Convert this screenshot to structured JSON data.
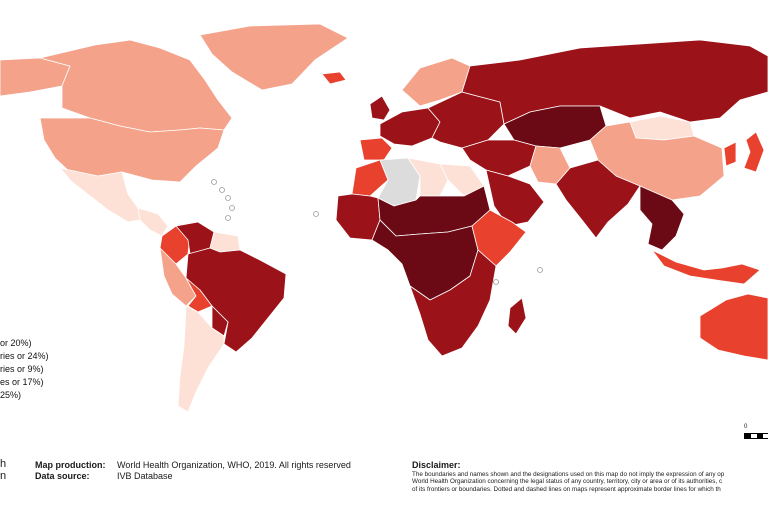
{
  "palette": {
    "darkest": "#6b0a14",
    "dark": "#9c1219",
    "medium": "#e8412e",
    "light": "#f4a28a",
    "lightest": "#fde1d6",
    "no_data": "#dcdcdc",
    "ocean": "#ffffff",
    "border": "#ffffff"
  },
  "legend": {
    "items": [
      {
        "text": "or 20%)",
        "color": "#6b0a14"
      },
      {
        "text": "ries or 24%)",
        "color": "#9c1219"
      },
      {
        "text": "ries or 9%)",
        "color": "#e8412e"
      },
      {
        "text": "es or 17%)",
        "color": "#f4a28a"
      },
      {
        "text": "25%)",
        "color": "#fde1d6"
      }
    ]
  },
  "logo": {
    "line1": "h",
    "line2": "n"
  },
  "production": {
    "label": "Map production:",
    "value": "World Health Organization, WHO, 2019. All rights reserved"
  },
  "source": {
    "label": "Data source:",
    "value": "IVB Database"
  },
  "disclaimer": {
    "title": "Disclaimer:",
    "lines": [
      "The boundaries and names shown and the designations used on this map do not imply the expression of any op",
      "World Health Organization concerning the legal status of any country, territory, city or area or of its authorities, c",
      "of its frontiers or boundaries. Dotted and dashed lines on maps represent approximate border lines for which th"
    ]
  },
  "scale": {
    "start": "0",
    "end": ""
  },
  "regions": [
    {
      "name": "canada",
      "fill": "light"
    },
    {
      "name": "alaska",
      "fill": "light"
    },
    {
      "name": "greenland",
      "fill": "light"
    },
    {
      "name": "usa",
      "fill": "light"
    },
    {
      "name": "mexico",
      "fill": "lightest"
    },
    {
      "name": "central-america",
      "fill": "lightest"
    },
    {
      "name": "colombia",
      "fill": "medium"
    },
    {
      "name": "venezuela",
      "fill": "dark"
    },
    {
      "name": "guianas",
      "fill": "lightest"
    },
    {
      "name": "brazil",
      "fill": "dark"
    },
    {
      "name": "peru",
      "fill": "light"
    },
    {
      "name": "bolivia",
      "fill": "medium"
    },
    {
      "name": "chile-argentina",
      "fill": "lightest"
    },
    {
      "name": "paraguay",
      "fill": "dark"
    },
    {
      "name": "iceland",
      "fill": "medium"
    },
    {
      "name": "scandinavia",
      "fill": "light"
    },
    {
      "name": "uk",
      "fill": "dark"
    },
    {
      "name": "western-europe",
      "fill": "dark"
    },
    {
      "name": "iberia",
      "fill": "medium"
    },
    {
      "name": "eastern-europe",
      "fill": "dark"
    },
    {
      "name": "russia",
      "fill": "dark"
    },
    {
      "name": "kazakhstan",
      "fill": "darkest"
    },
    {
      "name": "mongolia",
      "fill": "lightest"
    },
    {
      "name": "china",
      "fill": "light"
    },
    {
      "name": "middle-east",
      "fill": "dark"
    },
    {
      "name": "arabia",
      "fill": "dark"
    },
    {
      "name": "iran",
      "fill": "light"
    },
    {
      "name": "india",
      "fill": "dark"
    },
    {
      "name": "southeast-asia",
      "fill": "darkest"
    },
    {
      "name": "indonesia",
      "fill": "medium"
    },
    {
      "name": "japan",
      "fill": "medium"
    },
    {
      "name": "korea",
      "fill": "medium"
    },
    {
      "name": "australia",
      "fill": "medium"
    },
    {
      "name": "morocco",
      "fill": "medium"
    },
    {
      "name": "algeria",
      "fill": "no_data"
    },
    {
      "name": "libya",
      "fill": "lightest"
    },
    {
      "name": "egypt",
      "fill": "lightest"
    },
    {
      "name": "sahel",
      "fill": "darkest"
    },
    {
      "name": "west-africa",
      "fill": "dark"
    },
    {
      "name": "central-africa",
      "fill": "darkest"
    },
    {
      "name": "east-africa",
      "fill": "medium"
    },
    {
      "name": "southern-africa",
      "fill": "dark"
    },
    {
      "name": "madagascar",
      "fill": "dark"
    }
  ]
}
